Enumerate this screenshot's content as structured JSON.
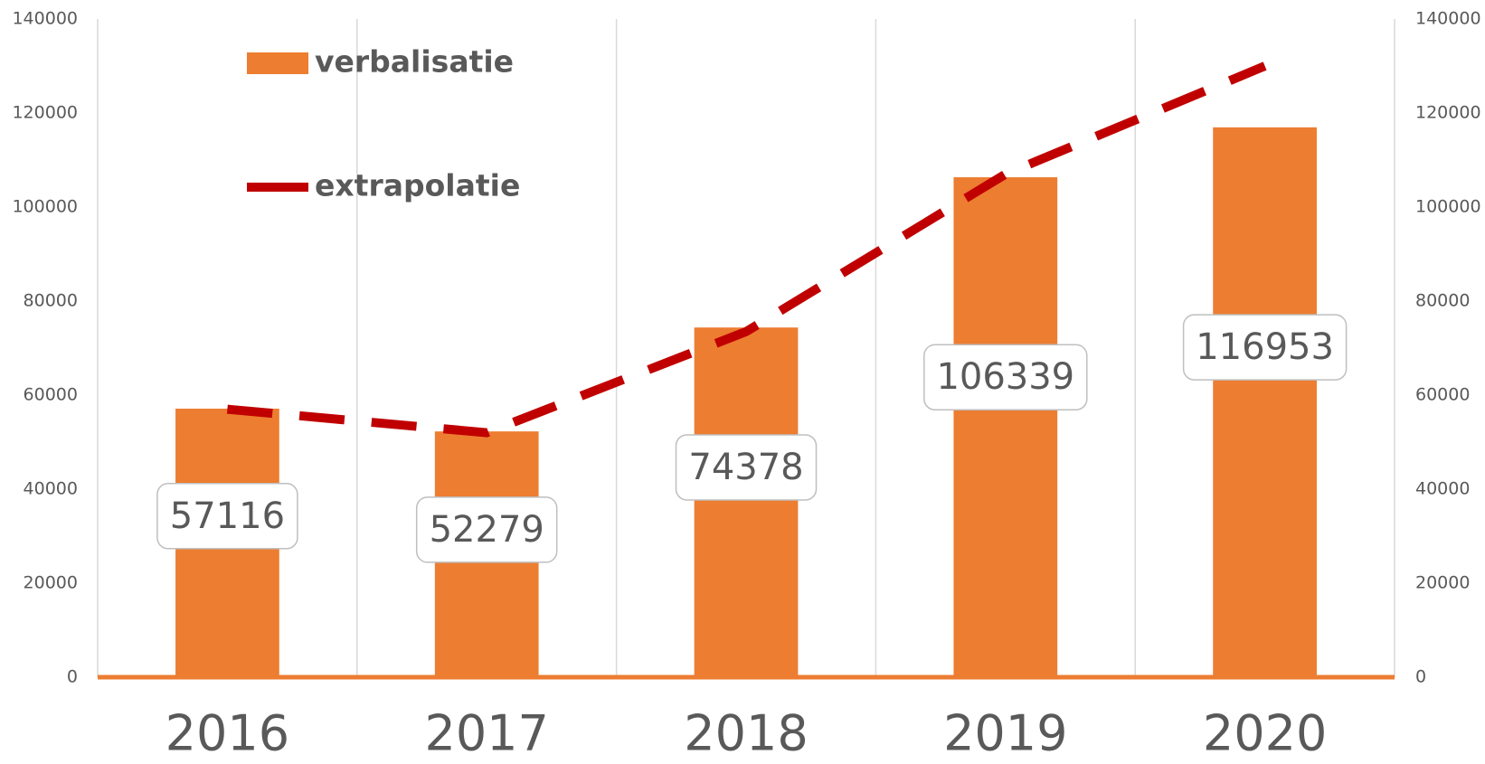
{
  "chart_data": {
    "type": "bar-line",
    "categories": [
      "2016",
      "2017",
      "2018",
      "2019",
      "2020"
    ],
    "series": [
      {
        "name": "verbalisatie",
        "type": "bar",
        "color": "#ed7d31",
        "values": [
          57116,
          52279,
          74378,
          106339,
          116953
        ]
      },
      {
        "name": "extrapolatie",
        "type": "line",
        "color": "#c00000",
        "dashed": true,
        "axis": "y2",
        "values": [
          57000,
          52000,
          73500,
          107000,
          130000
        ]
      }
    ],
    "ylim": [
      0,
      140000
    ],
    "yticks": [
      0,
      20000,
      40000,
      60000,
      80000,
      100000,
      120000,
      140000
    ],
    "y2lim": [
      0,
      140000
    ],
    "y2ticks": [
      0,
      20000,
      40000,
      60000,
      80000,
      100000,
      120000,
      140000
    ],
    "grid": "x",
    "legend": "upper left"
  }
}
